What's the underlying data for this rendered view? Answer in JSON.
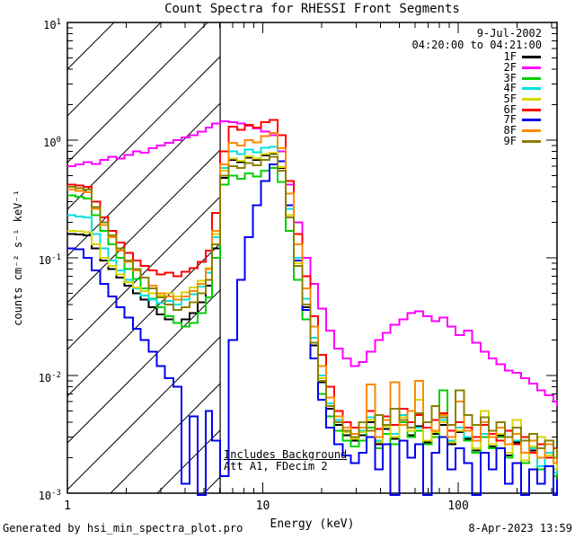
{
  "header": {
    "date": "9-Jul-2002",
    "interval": "04:20:00 to 04:21:00"
  },
  "annotations": {
    "line1": "Includes Background",
    "line2": "Att A1, FDecim 2"
  },
  "footer": {
    "generated_by": "Generated by hsi_min_spectra_plot.pro",
    "timestamp": "8-Apr-2023 13:59"
  },
  "chart_data": {
    "type": "line",
    "title": "Count Spectra for RHESSI Front Segments",
    "xlabel": "Energy (keV)",
    "ylabel": "counts cm⁻² s⁻¹ keV⁻¹",
    "xscale": "log",
    "yscale": "log",
    "xlim": [
      1,
      320
    ],
    "ylim": [
      0.001,
      10
    ],
    "grid": false,
    "legend_position": "top-right",
    "xticks": [
      {
        "value": 1,
        "label": "1"
      },
      {
        "value": 10,
        "label": "10"
      },
      {
        "value": 100,
        "label": "100"
      }
    ],
    "ytick_exponents": [
      1,
      0,
      -1,
      -2,
      -3
    ],
    "hatched_region": {
      "xmin": 1,
      "xmax": 6.05
    },
    "vline_x": 6.05,
    "energies": [
      1.0,
      1.1,
      1.21,
      1.33,
      1.47,
      1.62,
      1.78,
      1.96,
      2.16,
      2.37,
      2.61,
      2.87,
      3.16,
      3.48,
      3.83,
      4.21,
      4.64,
      5.1,
      5.5,
      6.05,
      6.7,
      7.4,
      8.1,
      8.9,
      9.8,
      10.8,
      11.9,
      13.1,
      14.4,
      15.9,
      17.5,
      19.2,
      21.1,
      23.2,
      25.6,
      28.2,
      31,
      34,
      37.5,
      41,
      45,
      50,
      55,
      60,
      66,
      73,
      80,
      88,
      97,
      107,
      118,
      130,
      143,
      157,
      173,
      190,
      209,
      230,
      253,
      278,
      306,
      320
    ],
    "series": [
      {
        "name": "1F",
        "color": "#000000",
        "values": [
          0.16,
          0.158,
          0.155,
          0.12,
          0.095,
          0.08,
          0.068,
          0.058,
          0.05,
          0.044,
          0.038,
          0.033,
          0.03,
          0.028,
          0.03,
          0.034,
          0.042,
          0.058,
          0.12,
          0.48,
          0.68,
          0.65,
          0.71,
          0.68,
          0.74,
          0.77,
          0.58,
          0.22,
          0.085,
          0.038,
          0.018,
          0.0088,
          0.0052,
          0.0038,
          0.0031,
          0.0028,
          0.0031,
          0.004,
          0.0026,
          0.0035,
          0.0029,
          0.0042,
          0.0031,
          0.0037,
          0.0027,
          0.0032,
          0.0038,
          0.0026,
          0.0033,
          0.0029,
          0.0023,
          0.003,
          0.0025,
          0.0031,
          0.0021,
          0.0027,
          0.0019,
          0.0023,
          0.0016,
          0.0021,
          0.0014,
          0.0017
        ]
      },
      {
        "name": "2F",
        "color": "#ff00ff",
        "values": [
          0.6,
          0.62,
          0.65,
          0.63,
          0.68,
          0.72,
          0.7,
          0.75,
          0.8,
          0.78,
          0.85,
          0.9,
          0.95,
          1.0,
          1.05,
          1.1,
          1.18,
          1.28,
          1.38,
          1.45,
          1.42,
          1.38,
          1.32,
          1.26,
          1.18,
          1.1,
          0.8,
          0.42,
          0.2,
          0.1,
          0.06,
          0.037,
          0.024,
          0.017,
          0.014,
          0.012,
          0.013,
          0.016,
          0.02,
          0.023,
          0.027,
          0.03,
          0.034,
          0.035,
          0.032,
          0.029,
          0.031,
          0.026,
          0.022,
          0.024,
          0.019,
          0.016,
          0.014,
          0.0125,
          0.011,
          0.0105,
          0.0095,
          0.0085,
          0.0075,
          0.0068,
          0.006,
          0.0055
        ]
      },
      {
        "name": "3F",
        "color": "#00d000",
        "values": [
          0.34,
          0.33,
          0.32,
          0.23,
          0.17,
          0.13,
          0.1,
          0.08,
          0.066,
          0.055,
          0.045,
          0.038,
          0.032,
          0.028,
          0.026,
          0.028,
          0.034,
          0.046,
          0.1,
          0.42,
          0.5,
          0.47,
          0.52,
          0.49,
          0.55,
          0.58,
          0.44,
          0.17,
          0.065,
          0.03,
          0.014,
          0.007,
          0.0045,
          0.0034,
          0.0028,
          0.0025,
          0.0028,
          0.0036,
          0.0024,
          0.0032,
          0.0026,
          0.004,
          0.003,
          0.0034,
          0.0026,
          0.003,
          0.0075,
          0.0028,
          0.0034,
          0.0028,
          0.0022,
          0.003,
          0.0024,
          0.003,
          0.002,
          0.0026,
          0.0018,
          0.0022,
          0.0016,
          0.002,
          0.0014,
          0.0018
        ]
      },
      {
        "name": "4F",
        "color": "#00e0e0",
        "values": [
          0.23,
          0.225,
          0.22,
          0.16,
          0.12,
          0.095,
          0.078,
          0.065,
          0.055,
          0.048,
          0.044,
          0.041,
          0.043,
          0.04,
          0.044,
          0.049,
          0.057,
          0.075,
          0.15,
          0.58,
          0.8,
          0.76,
          0.83,
          0.79,
          0.86,
          0.88,
          0.66,
          0.26,
          0.1,
          0.045,
          0.021,
          0.01,
          0.0058,
          0.0042,
          0.0034,
          0.003,
          0.0034,
          0.0044,
          0.0028,
          0.0038,
          0.0032,
          0.0046,
          0.005,
          0.0036,
          0.0028,
          0.0034,
          0.0042,
          0.0028,
          0.0036,
          0.003,
          0.0024,
          0.0032,
          0.0026,
          0.0032,
          0.0022,
          0.0028,
          0.0019,
          0.0024,
          0.0017,
          0.0022,
          0.0015,
          0.0019
        ]
      },
      {
        "name": "5F",
        "color": "#d6d600",
        "values": [
          0.17,
          0.168,
          0.165,
          0.13,
          0.1,
          0.085,
          0.072,
          0.062,
          0.056,
          0.052,
          0.05,
          0.048,
          0.05,
          0.047,
          0.051,
          0.056,
          0.064,
          0.082,
          0.16,
          0.55,
          0.7,
          0.67,
          0.73,
          0.7,
          0.76,
          0.78,
          0.59,
          0.23,
          0.09,
          0.04,
          0.019,
          0.0095,
          0.0055,
          0.004,
          0.0033,
          0.0029,
          0.0033,
          0.0042,
          0.0027,
          0.0037,
          0.003,
          0.0044,
          0.0034,
          0.0062,
          0.0028,
          0.0033,
          0.004,
          0.0027,
          0.0034,
          0.0046,
          0.0024,
          0.005,
          0.0026,
          0.0032,
          0.0022,
          0.0042,
          0.0019,
          0.0025,
          0.003,
          0.0021,
          0.0016,
          0.002
        ]
      },
      {
        "name": "6F",
        "color": "#ff0000",
        "values": [
          0.42,
          0.41,
          0.4,
          0.3,
          0.22,
          0.17,
          0.135,
          0.11,
          0.095,
          0.085,
          0.078,
          0.072,
          0.075,
          0.07,
          0.076,
          0.082,
          0.092,
          0.115,
          0.24,
          0.8,
          1.3,
          1.22,
          1.35,
          1.28,
          1.42,
          1.48,
          1.1,
          0.45,
          0.16,
          0.07,
          0.032,
          0.015,
          0.008,
          0.005,
          0.004,
          0.0036,
          0.004,
          0.005,
          0.0035,
          0.0045,
          0.0038,
          0.0052,
          0.004,
          0.0046,
          0.0036,
          0.0042,
          0.0048,
          0.0034,
          0.004,
          0.0036,
          0.003,
          0.0038,
          0.0032,
          0.0028,
          0.0034,
          0.0026,
          0.003,
          0.0022,
          0.0026,
          0.002,
          0.0024,
          0.0018
        ]
      },
      {
        "name": "7F",
        "color": "#0000ee",
        "values": [
          0.12,
          0.118,
          0.1,
          0.078,
          0.06,
          0.047,
          0.038,
          0.031,
          0.025,
          0.02,
          0.016,
          0.012,
          0.0095,
          0.008,
          0.0012,
          0.0045,
          0.0008,
          0.005,
          0.0028,
          0.0014,
          0.02,
          0.065,
          0.15,
          0.28,
          0.45,
          0.62,
          0.66,
          0.28,
          0.095,
          0.036,
          0.014,
          0.0062,
          0.0036,
          0.0026,
          0.0021,
          0.0018,
          0.0022,
          0.003,
          0.0016,
          0.0026,
          0.0008,
          0.0028,
          0.002,
          0.0026,
          0.0006,
          0.0022,
          0.003,
          0.0016,
          0.0024,
          0.0018,
          0.0007,
          0.0022,
          0.0016,
          0.0024,
          0.0012,
          0.0018,
          0.0005,
          0.0016,
          0.0012,
          0.0017,
          0.0009,
          0.0013
        ]
      },
      {
        "name": "8F",
        "color": "#ff8800",
        "values": [
          0.38,
          0.37,
          0.36,
          0.26,
          0.19,
          0.15,
          0.115,
          0.092,
          0.078,
          0.068,
          0.058,
          0.05,
          0.047,
          0.044,
          0.047,
          0.052,
          0.06,
          0.08,
          0.17,
          0.62,
          0.95,
          0.9,
          1.0,
          0.96,
          1.08,
          1.15,
          0.85,
          0.35,
          0.13,
          0.055,
          0.026,
          0.012,
          0.0065,
          0.0045,
          0.0036,
          0.0032,
          0.0036,
          0.0084,
          0.003,
          0.0042,
          0.0088,
          0.0038,
          0.005,
          0.009,
          0.004,
          0.0034,
          0.0046,
          0.003,
          0.006,
          0.0034,
          0.0028,
          0.004,
          0.003,
          0.0036,
          0.0026,
          0.0032,
          0.0022,
          0.0028,
          0.002,
          0.0026,
          0.0018,
          0.0022
        ]
      },
      {
        "name": "9F",
        "color": "#8b8000",
        "values": [
          0.4,
          0.39,
          0.38,
          0.27,
          0.2,
          0.155,
          0.12,
          0.095,
          0.08,
          0.068,
          0.055,
          0.046,
          0.04,
          0.036,
          0.038,
          0.042,
          0.05,
          0.065,
          0.13,
          0.5,
          0.6,
          0.58,
          0.64,
          0.61,
          0.68,
          0.72,
          0.55,
          0.22,
          0.085,
          0.04,
          0.019,
          0.009,
          0.0055,
          0.004,
          0.0034,
          0.003,
          0.004,
          0.0034,
          0.0046,
          0.0038,
          0.0052,
          0.0042,
          0.0036,
          0.0048,
          0.004,
          0.0055,
          0.0044,
          0.0038,
          0.0075,
          0.0046,
          0.0038,
          0.0044,
          0.0034,
          0.004,
          0.003,
          0.0036,
          0.0028,
          0.0032,
          0.0024,
          0.0028,
          0.002,
          0.0024
        ]
      }
    ]
  }
}
